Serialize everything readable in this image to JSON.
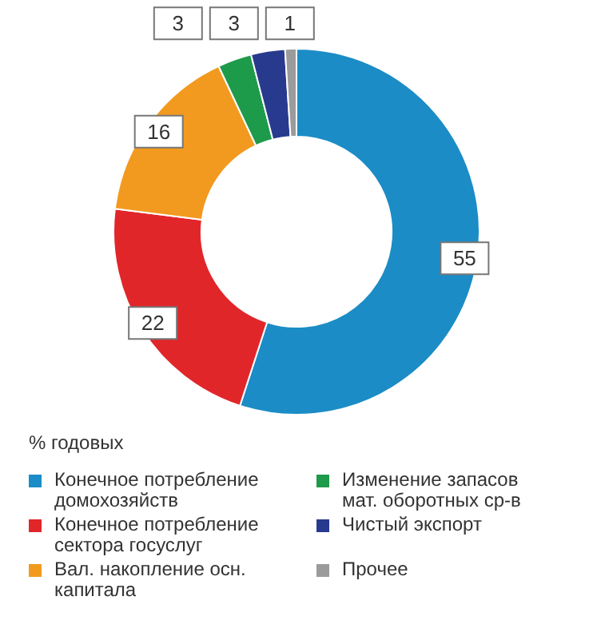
{
  "chart_data": {
    "type": "donut",
    "legend_title": "% годовых",
    "categories": [
      "Конечное потребление домохозяйств",
      "Конечное потребление сектора госуслуг",
      "Вал. накопление осн. капитала",
      "Изменение запасов мат. оборотных ср-в",
      "Чистый экспорт",
      "Прочее"
    ],
    "values": [
      55,
      22,
      16,
      3,
      3,
      1
    ],
    "colors": [
      "#1b8cc6",
      "#e1262a",
      "#f29a1f",
      "#1e9a4b",
      "#283a8e",
      "#9b9b9b"
    ],
    "data_labels": true,
    "legend": "bottom"
  }
}
